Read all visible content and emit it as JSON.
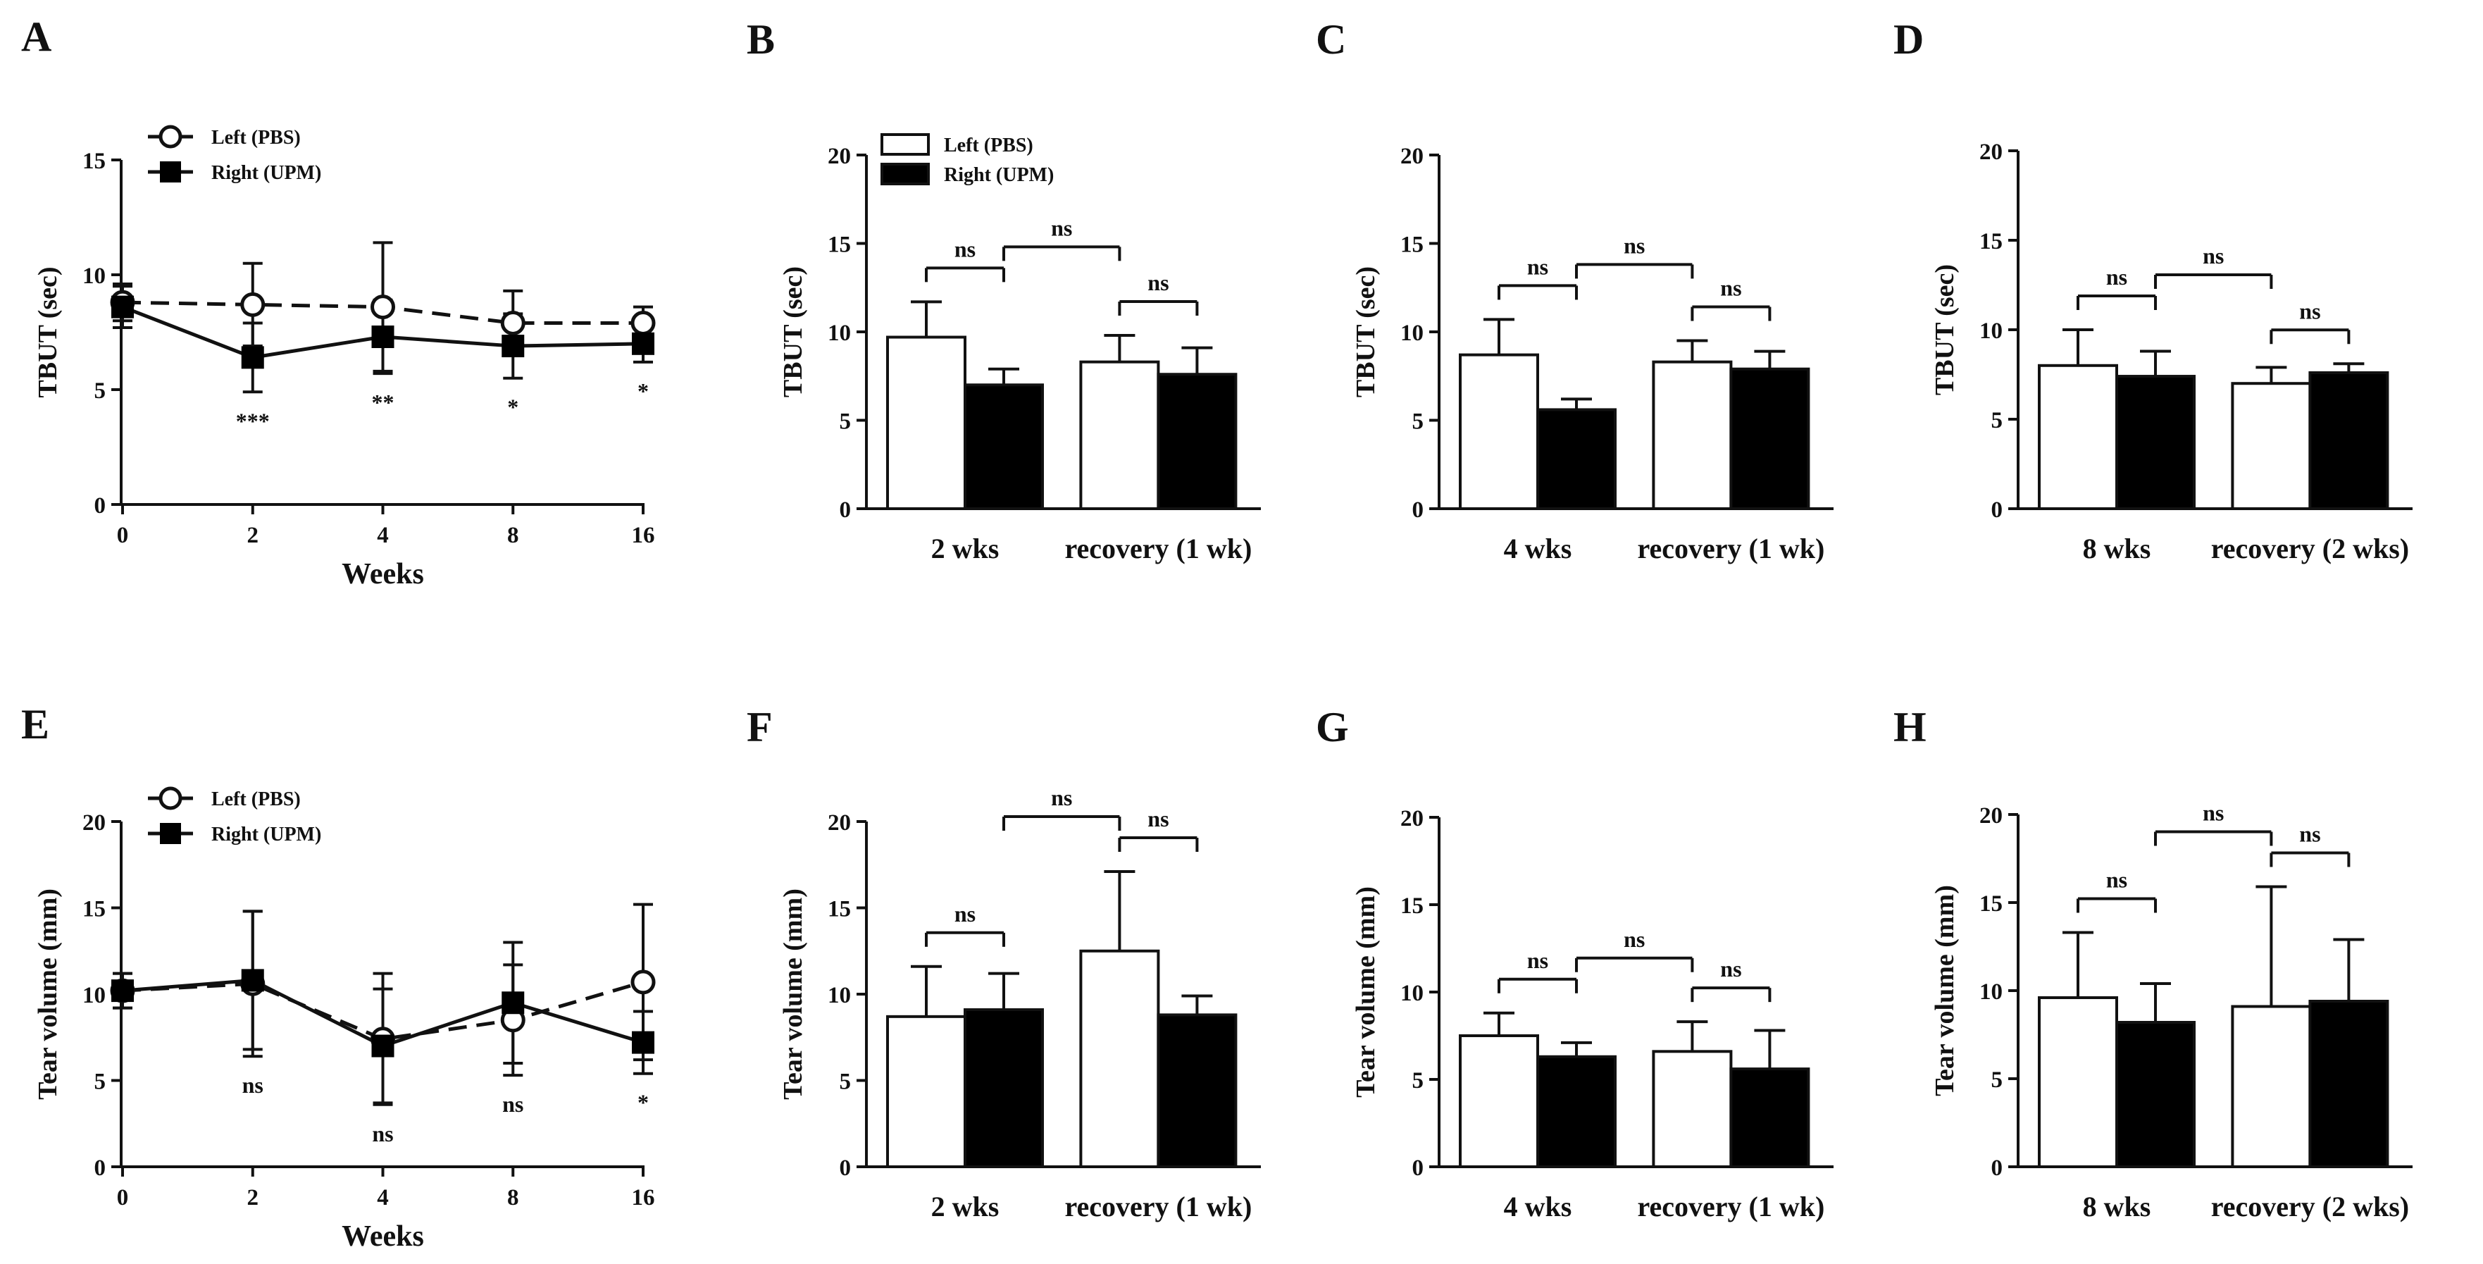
{
  "figure": {
    "panels": [
      "A",
      "B",
      "C",
      "D",
      "E",
      "F",
      "G",
      "H"
    ]
  },
  "colors": {
    "ink": "#111111",
    "fill_right": "#000000",
    "fill_left": "#ffffff"
  },
  "chart_data": [
    {
      "panel": "A",
      "type": "line",
      "title": "",
      "xlabel": "Weeks",
      "ylabel": "TBUT (sec)",
      "x": [
        "0",
        "2",
        "4",
        "8",
        "16"
      ],
      "ylim": [
        0,
        15
      ],
      "yticks": [
        0,
        5,
        10,
        15
      ],
      "series": [
        {
          "name": "Left (PBS)",
          "marker": "open-circle",
          "dashed": true,
          "values": [
            8.8,
            8.7,
            8.6,
            7.9,
            7.9
          ],
          "err": [
            0.8,
            1.8,
            2.8,
            1.4,
            0.7
          ]
        },
        {
          "name": "Right (UPM)",
          "marker": "filled-square",
          "dashed": false,
          "values": [
            8.6,
            6.4,
            7.3,
            6.9,
            7.0
          ],
          "err": [
            0.9,
            1.5,
            1.6,
            1.4,
            0.8
          ]
        }
      ],
      "annotations": [
        "",
        "***",
        "**",
        "*",
        "*"
      ]
    },
    {
      "panel": "B",
      "type": "bar",
      "title": "",
      "ylabel": "TBUT (sec)",
      "categories": [
        "2 wks",
        "recovery (1 wk)"
      ],
      "ylim": [
        0,
        20
      ],
      "yticks": [
        0,
        5,
        10,
        15,
        20
      ],
      "series": [
        {
          "name": "Left (PBS)",
          "values": [
            9.7,
            8.3
          ],
          "err": [
            2.0,
            1.5
          ]
        },
        {
          "name": "Right (UPM)",
          "values": [
            7.0,
            7.6
          ],
          "err": [
            0.9,
            1.5
          ]
        }
      ],
      "legend": true,
      "brackets": [
        {
          "from": [
            0,
            0
          ],
          "to": [
            0,
            1
          ],
          "label": "ns"
        },
        {
          "from": [
            1,
            0
          ],
          "to": [
            1,
            1
          ],
          "label": "ns"
        },
        {
          "from": [
            0,
            1
          ],
          "to": [
            1,
            0
          ],
          "label": "ns"
        }
      ]
    },
    {
      "panel": "C",
      "type": "bar",
      "title": "",
      "ylabel": "TBUT (sec)",
      "categories": [
        "4 wks",
        "recovery (1 wk)"
      ],
      "ylim": [
        0,
        20
      ],
      "yticks": [
        0,
        5,
        10,
        15,
        20
      ],
      "series": [
        {
          "name": "Left (PBS)",
          "values": [
            8.7,
            8.3
          ],
          "err": [
            2.0,
            1.2
          ]
        },
        {
          "name": "Right (UPM)",
          "values": [
            5.6,
            7.9
          ],
          "err": [
            0.6,
            1.0
          ]
        }
      ],
      "legend": false,
      "brackets": [
        {
          "from": [
            0,
            0
          ],
          "to": [
            0,
            1
          ],
          "label": "ns"
        },
        {
          "from": [
            1,
            0
          ],
          "to": [
            1,
            1
          ],
          "label": "ns"
        },
        {
          "from": [
            0,
            1
          ],
          "to": [
            1,
            0
          ],
          "label": "ns"
        }
      ]
    },
    {
      "panel": "D",
      "type": "bar",
      "title": "",
      "ylabel": "TBUT (sec)",
      "categories": [
        "8 wks",
        "recovery (2 wks)"
      ],
      "ylim": [
        0,
        20
      ],
      "yticks": [
        0,
        5,
        10,
        15,
        20
      ],
      "series": [
        {
          "name": "Left (PBS)",
          "values": [
            8.0,
            7.0
          ],
          "err": [
            2.0,
            0.9
          ]
        },
        {
          "name": "Right (UPM)",
          "values": [
            7.4,
            7.6
          ],
          "err": [
            1.4,
            0.5
          ]
        }
      ],
      "legend": false,
      "brackets": [
        {
          "from": [
            0,
            0
          ],
          "to": [
            0,
            1
          ],
          "label": "ns"
        },
        {
          "from": [
            1,
            0
          ],
          "to": [
            1,
            1
          ],
          "label": "ns"
        },
        {
          "from": [
            0,
            1
          ],
          "to": [
            1,
            0
          ],
          "label": "ns"
        }
      ]
    },
    {
      "panel": "E",
      "type": "line",
      "title": "",
      "xlabel": "Weeks",
      "ylabel": "Tear volume (mm)",
      "x": [
        "0",
        "2",
        "4",
        "8",
        "16"
      ],
      "ylim": [
        0,
        20
      ],
      "yticks": [
        0,
        5,
        10,
        15,
        20
      ],
      "series": [
        {
          "name": "Left (PBS)",
          "marker": "open-circle",
          "dashed": true,
          "values": [
            10.2,
            10.6,
            7.4,
            8.5,
            10.7
          ],
          "err": [
            1.0,
            4.2,
            3.8,
            3.2,
            4.5
          ]
        },
        {
          "name": "Right (UPM)",
          "marker": "filled-square",
          "dashed": false,
          "values": [
            10.2,
            10.8,
            7.0,
            9.5,
            7.2
          ],
          "err": [
            1.0,
            4.0,
            3.3,
            3.5,
            1.8
          ]
        }
      ],
      "annotations": [
        "",
        "ns",
        "ns",
        "ns",
        "*"
      ]
    },
    {
      "panel": "F",
      "type": "bar",
      "title": "",
      "ylabel": "Tear volume (mm)",
      "categories": [
        "2 wks",
        "recovery (1 wk)"
      ],
      "ylim": [
        0,
        20
      ],
      "yticks": [
        0,
        5,
        10,
        15,
        20
      ],
      "series": [
        {
          "name": "Left (PBS)",
          "values": [
            8.7,
            12.5
          ],
          "err": [
            2.9,
            4.6
          ]
        },
        {
          "name": "Right (UPM)",
          "values": [
            9.1,
            8.8
          ],
          "err": [
            2.1,
            1.1
          ]
        }
      ],
      "legend": false,
      "brackets": [
        {
          "from": [
            0,
            0
          ],
          "to": [
            0,
            1
          ],
          "label": "ns"
        },
        {
          "from": [
            1,
            0
          ],
          "to": [
            1,
            1
          ],
          "label": "ns"
        },
        {
          "from": [
            0,
            1
          ],
          "to": [
            1,
            0
          ],
          "label": "ns"
        }
      ]
    },
    {
      "panel": "G",
      "type": "bar",
      "title": "",
      "ylabel": "Tear volume (mm)",
      "categories": [
        "4 wks",
        "recovery (1 wk)"
      ],
      "ylim": [
        0,
        20
      ],
      "yticks": [
        0,
        5,
        10,
        15,
        20
      ],
      "series": [
        {
          "name": "Left (PBS)",
          "values": [
            7.5,
            6.6
          ],
          "err": [
            1.3,
            1.7
          ]
        },
        {
          "name": "Right (UPM)",
          "values": [
            6.3,
            5.6
          ],
          "err": [
            0.8,
            2.2
          ]
        }
      ],
      "legend": false,
      "brackets": [
        {
          "from": [
            0,
            0
          ],
          "to": [
            0,
            1
          ],
          "label": "ns"
        },
        {
          "from": [
            1,
            0
          ],
          "to": [
            1,
            1
          ],
          "label": "ns"
        },
        {
          "from": [
            0,
            1
          ],
          "to": [
            1,
            0
          ],
          "label": "ns"
        }
      ]
    },
    {
      "panel": "H",
      "type": "bar",
      "title": "",
      "ylabel": "Tear volume (mm)",
      "categories": [
        "8 wks",
        "recovery (2 wks)"
      ],
      "ylim": [
        0,
        20
      ],
      "yticks": [
        0,
        5,
        10,
        15,
        20
      ],
      "series": [
        {
          "name": "Left (PBS)",
          "values": [
            9.6,
            9.1
          ],
          "err": [
            3.7,
            6.8
          ]
        },
        {
          "name": "Right (UPM)",
          "values": [
            8.2,
            9.4
          ],
          "err": [
            2.2,
            3.5
          ]
        }
      ],
      "legend": false,
      "brackets": [
        {
          "from": [
            0,
            0
          ],
          "to": [
            0,
            1
          ],
          "label": "ns"
        },
        {
          "from": [
            1,
            0
          ],
          "to": [
            1,
            1
          ],
          "label": "ns"
        },
        {
          "from": [
            0,
            1
          ],
          "to": [
            1,
            0
          ],
          "label": "ns"
        }
      ]
    }
  ]
}
